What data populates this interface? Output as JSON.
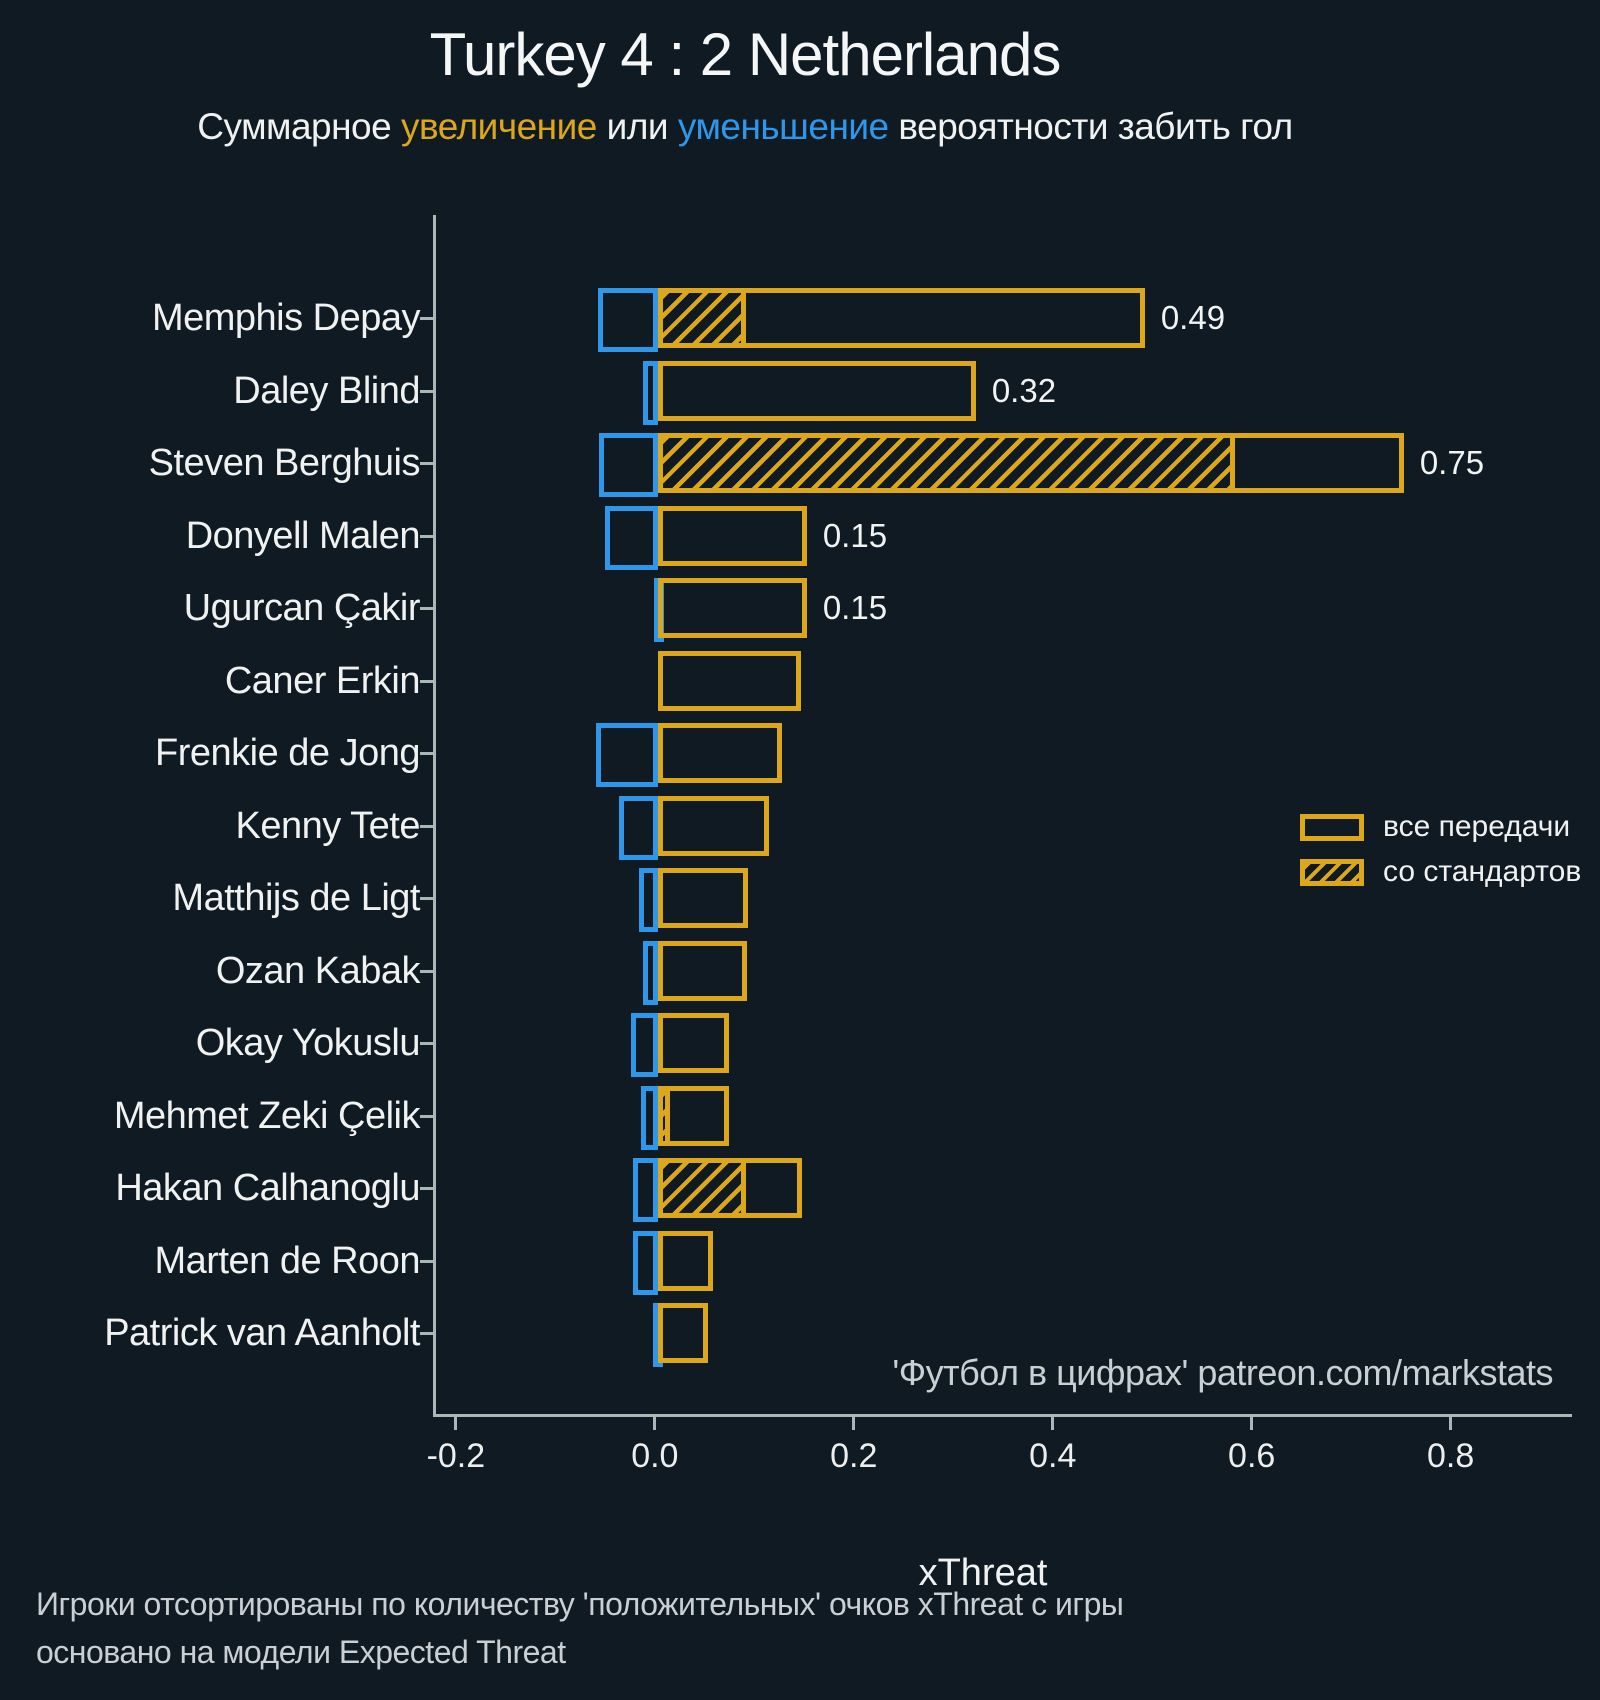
{
  "title": "Turkey 4 : 2 Netherlands",
  "subtitle": {
    "part1": "Суммарное ",
    "increase_word": "увеличение",
    "part2": " или ",
    "decrease_word": "уменьшение",
    "part3": " вероятности забить гол"
  },
  "colors": {
    "background": "#101A23",
    "positive_gold": "#DDA71C",
    "negative_blue": "#2E97E9",
    "axis": "#A9B7B6",
    "text": "#F0F2F2",
    "muted_text": "#C9CFD2"
  },
  "legend": [
    {
      "label": "все передачи",
      "style": "solid"
    },
    {
      "label": "со стандартов",
      "style": "hatched"
    }
  ],
  "watermark": "'Футбол в цифрах' patreon.com/markstats",
  "xlabel": "xThreat",
  "footnote_line1": "Игроки отсортированы по количеству 'положительных' очков xThreat с игры",
  "footnote_line2": "основано на модели Expected Threat",
  "chart_data": {
    "type": "bar",
    "orientation": "horizontal",
    "title": "Turkey 4 : 2 Netherlands",
    "xlabel": "xThreat",
    "xlim": [
      -0.223,
      0.922
    ],
    "xticks": [
      -0.2,
      0.0,
      0.2,
      0.4,
      0.6,
      0.8
    ],
    "xtick_labels": [
      "-0.2",
      "0.0",
      "0.2",
      "0.4",
      "0.6",
      "0.8"
    ],
    "grid": false,
    "legend_position": "right-middle-inside",
    "series_note": "negative = уменьшение (blue), positive = увеличение (gold), set_piece = часть positive со стандартов (hatched)",
    "players": [
      {
        "name": "Memphis Depay",
        "negative": -0.06,
        "positive": 0.49,
        "set_piece": 0.088,
        "label": "0.49"
      },
      {
        "name": "Daley Blind",
        "negative": -0.015,
        "positive": 0.32,
        "set_piece": 0,
        "label": "0.32"
      },
      {
        "name": "Steven Berghuis",
        "negative": -0.059,
        "positive": 0.75,
        "set_piece": 0.58,
        "label": "0.75"
      },
      {
        "name": "Donyell Malen",
        "negative": -0.053,
        "positive": 0.15,
        "set_piece": 0,
        "label": "0.15"
      },
      {
        "name": "Ugurcan Çakir",
        "negative": -0.004,
        "positive": 0.15,
        "set_piece": 0,
        "label": "0.15"
      },
      {
        "name": "Caner Erkin",
        "negative": 0,
        "positive": 0.144,
        "set_piece": 0,
        "label": ""
      },
      {
        "name": "Frenkie de Jong",
        "negative": -0.062,
        "positive": 0.125,
        "set_piece": 0,
        "label": ""
      },
      {
        "name": "Kenny Tete",
        "negative": -0.039,
        "positive": 0.112,
        "set_piece": 0,
        "label": ""
      },
      {
        "name": "Matthijs de Ligt",
        "negative": -0.019,
        "positive": 0.09,
        "set_piece": 0,
        "label": ""
      },
      {
        "name": "Ozan Kabak",
        "negative": -0.015,
        "positive": 0.089,
        "set_piece": 0,
        "label": ""
      },
      {
        "name": "Okay Yokuslu",
        "negative": -0.027,
        "positive": 0.071,
        "set_piece": 0,
        "label": ""
      },
      {
        "name": "Mehmet Zeki Çelik",
        "negative": -0.017,
        "positive": 0.071,
        "set_piece": 0.012,
        "label": ""
      },
      {
        "name": "Hakan Calhanoglu",
        "negative": -0.025,
        "positive": 0.145,
        "set_piece": 0.088,
        "label": ""
      },
      {
        "name": "Marten de Roon",
        "negative": -0.025,
        "positive": 0.055,
        "set_piece": 0,
        "label": ""
      },
      {
        "name": "Patrick van Aanholt",
        "negative": -0.005,
        "positive": 0.05,
        "set_piece": 0,
        "label": ""
      }
    ]
  }
}
